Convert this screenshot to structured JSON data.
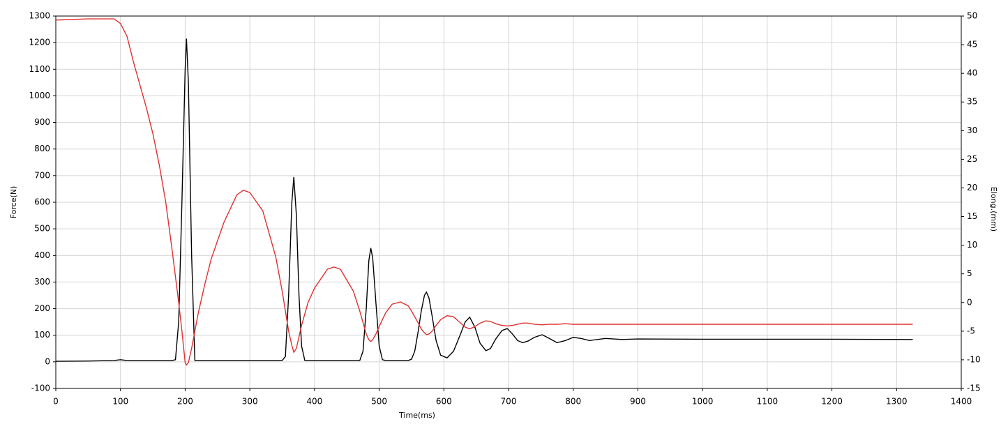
{
  "chart_data": {
    "type": "line",
    "x_label": "Time(ms)",
    "y_label": "Force(N)",
    "y2_label": "Elong.(mm)",
    "xlim": [
      0,
      1400
    ],
    "xticks": [
      0,
      100,
      200,
      300,
      400,
      500,
      600,
      700,
      800,
      900,
      1000,
      1100,
      1200,
      1300,
      1400
    ],
    "ylim": [
      -100,
      1300
    ],
    "yticks": [
      -100,
      0,
      100,
      200,
      300,
      400,
      500,
      600,
      700,
      800,
      900,
      1000,
      1100,
      1200,
      1300
    ],
    "y2lim": [
      -15,
      50
    ],
    "y2ticks": [
      -15,
      -10,
      -5,
      0,
      5,
      10,
      15,
      20,
      25,
      30,
      35,
      40,
      45,
      50
    ],
    "grid": true,
    "x": [
      0,
      50,
      90,
      100,
      110,
      120,
      130,
      140,
      150,
      160,
      170,
      180,
      185,
      190,
      195,
      200,
      202,
      205,
      210,
      215,
      220,
      230,
      240,
      260,
      280,
      290,
      300,
      320,
      340,
      350,
      355,
      360,
      365,
      368,
      372,
      376,
      380,
      385,
      390,
      400,
      420,
      430,
      440,
      460,
      470,
      475,
      480,
      484,
      487,
      490,
      495,
      500,
      505,
      510,
      520,
      533,
      545,
      550,
      555,
      560,
      565,
      570,
      573,
      577,
      582,
      588,
      595,
      605,
      615,
      625,
      633,
      640,
      648,
      656,
      665,
      672,
      680,
      690,
      698,
      706,
      714,
      722,
      730,
      740,
      752,
      763,
      775,
      788,
      800,
      812,
      825,
      850,
      875,
      900,
      1000,
      1100,
      1200,
      1325
    ],
    "series": [
      {
        "color": "#000000",
        "axis": "y",
        "values": [
          2,
          3,
          5,
          8,
          5,
          5,
          5,
          5,
          5,
          5,
          5,
          5,
          8,
          150,
          600,
          1100,
          1215,
          1050,
          400,
          5,
          5,
          5,
          5,
          5,
          5,
          5,
          5,
          5,
          5,
          5,
          20,
          250,
          600,
          695,
          550,
          250,
          60,
          5,
          5,
          5,
          5,
          5,
          5,
          5,
          5,
          40,
          200,
          380,
          428,
          390,
          220,
          60,
          8,
          5,
          5,
          5,
          5,
          10,
          40,
          110,
          190,
          250,
          262,
          240,
          170,
          80,
          25,
          15,
          40,
          100,
          150,
          168,
          130,
          70,
          42,
          50,
          85,
          118,
          125,
          105,
          80,
          72,
          78,
          92,
          102,
          88,
          72,
          80,
          92,
          88,
          80,
          88,
          84,
          86,
          85,
          85,
          85,
          84
        ]
      },
      {
        "color": "#e03030",
        "axis": "y2",
        "values": [
          49.3,
          49.5,
          49.5,
          48.7,
          46.5,
          42,
          38,
          34,
          29.5,
          24,
          17.5,
          9,
          4.5,
          0,
          -5,
          -10.5,
          -10.9,
          -10.5,
          -8,
          -5,
          -2,
          3,
          7.5,
          14,
          18.8,
          19.6,
          19.2,
          16,
          8,
          2,
          -1.5,
          -5,
          -7.5,
          -8.7,
          -8,
          -6,
          -4,
          -2,
          0,
          2.5,
          5.8,
          6.2,
          5.8,
          2,
          -1.5,
          -3.5,
          -5.5,
          -6.5,
          -6.8,
          -6.5,
          -5.5,
          -4.2,
          -3,
          -1.8,
          -0.3,
          0.1,
          -0.6,
          -1.5,
          -2.5,
          -3.5,
          -4.6,
          -5.3,
          -5.6,
          -5.5,
          -5,
          -4,
          -3,
          -2.3,
          -2.5,
          -3.5,
          -4.3,
          -4.6,
          -4.2,
          -3.6,
          -3.2,
          -3.3,
          -3.7,
          -4,
          -4.1,
          -4,
          -3.8,
          -3.6,
          -3.6,
          -3.8,
          -3.9,
          -3.8,
          -3.8,
          -3.7,
          -3.8,
          -3.8,
          -3.8,
          -3.8,
          -3.8,
          -3.8,
          -3.8,
          -3.8,
          -3.8,
          -3.8
        ]
      }
    ]
  }
}
